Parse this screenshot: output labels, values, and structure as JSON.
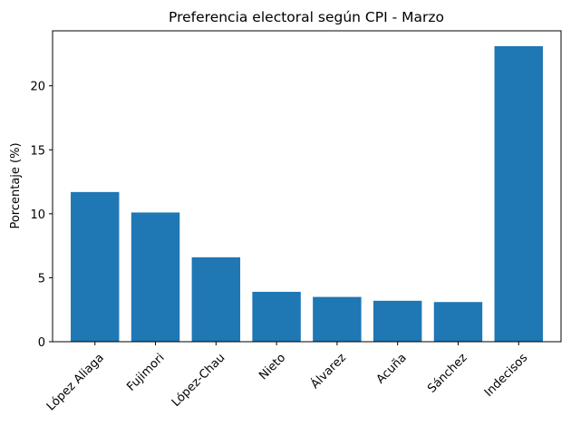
{
  "chart_data": {
    "type": "bar",
    "title": "Preferencia electoral según CPI - Marzo",
    "xlabel": "",
    "ylabel": "Porcentaje (%)",
    "categories": [
      "López Aliaga",
      "Fujimori",
      "López-Chau",
      "Nieto",
      "Álvarez",
      "Acuña",
      "Sánchez",
      "Indecisos"
    ],
    "values": [
      11.7,
      10.1,
      6.6,
      3.9,
      3.5,
      3.2,
      3.1,
      23.1
    ],
    "ylim": [
      0,
      24.3
    ],
    "yticks": [
      0,
      5,
      10,
      15,
      20
    ],
    "bar_color": "#1f77b4",
    "grid": false,
    "legend": "none"
  }
}
